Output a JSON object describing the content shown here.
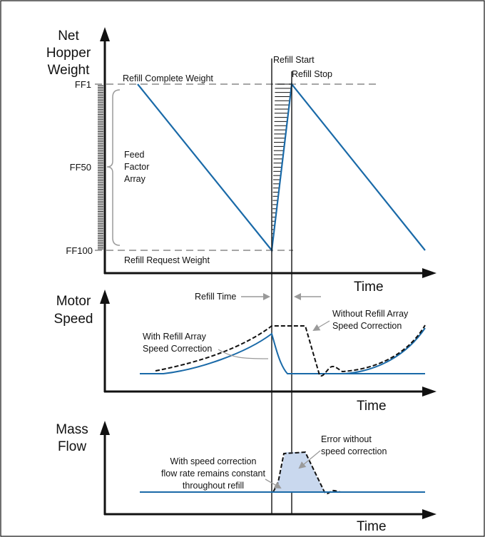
{
  "colors": {
    "signal": "#1a6aa8",
    "shade": "#c9d8ee",
    "reference": "#9a9a9a",
    "ink": "#111111"
  },
  "panel_weight": {
    "y_title_lines": [
      "Net",
      "Hopper",
      "Weight"
    ],
    "x_label": "Time",
    "ff_labels": [
      "FF1",
      "FF50",
      "FF100"
    ],
    "refill_start": "Refill Start",
    "refill_stop": "Refill Stop",
    "refill_complete": "Refill Complete Weight",
    "refill_request": "Refill Request Weight",
    "array_lines": [
      "Feed",
      "Factor",
      "Array"
    ]
  },
  "panel_speed": {
    "y_title_lines": [
      "Motor",
      "Speed"
    ],
    "x_label": "Time",
    "refill_time": "Refill Time",
    "with_lines": [
      "With Refill Array",
      "Speed Correction"
    ],
    "without_lines": [
      "Without Refill Array",
      "Speed Correction"
    ]
  },
  "panel_flow": {
    "y_title_lines": [
      "Mass",
      "Flow"
    ],
    "x_label": "Time",
    "error_lines": [
      "Error without",
      "speed correction"
    ],
    "constant_lines": [
      "With speed correction",
      "flow rate remains constant",
      "throughout refill"
    ]
  }
}
